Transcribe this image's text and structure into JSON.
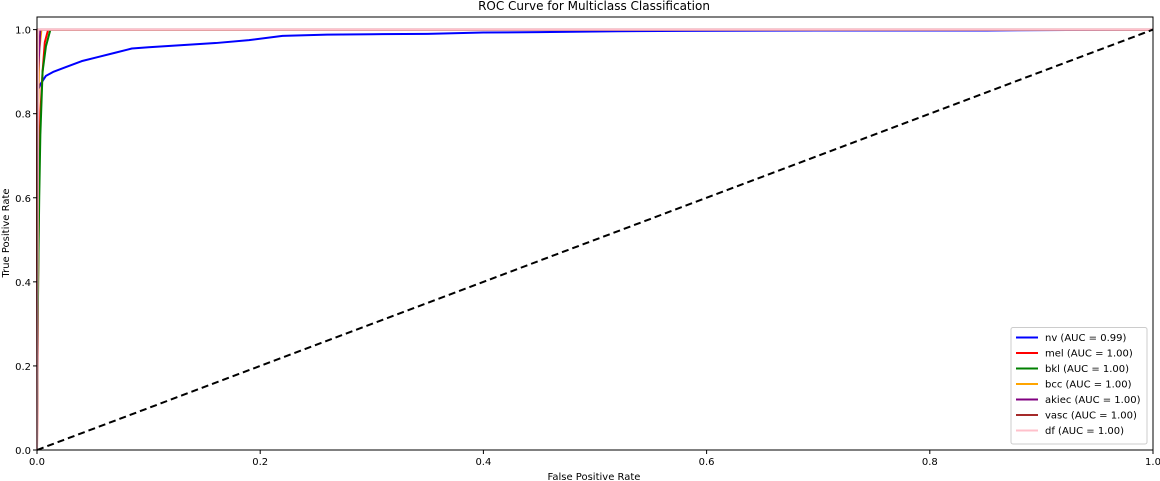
{
  "chart_data": {
    "type": "line",
    "title": "ROC Curve for Multiclass Classification",
    "xlabel": "False Positive Rate",
    "ylabel": "True Positive Rate",
    "xlim": [
      0,
      1
    ],
    "ylim": [
      0,
      1.03
    ],
    "xticks": [
      "0.0",
      "0.2",
      "0.4",
      "0.6",
      "0.8",
      "1.0"
    ],
    "yticks": [
      "0.0",
      "0.2",
      "0.4",
      "0.6",
      "0.8",
      "1.0"
    ],
    "grid": false,
    "legend_position": "lower-right",
    "diagonal": {
      "x": [
        0,
        1
      ],
      "y": [
        0,
        1
      ],
      "color": "#000000",
      "style": "dashed"
    },
    "series": [
      {
        "name": "nv (AUC = 0.99)",
        "color": "#0000ff",
        "x": [
          0,
          0,
          0.003,
          0.008,
          0.015,
          0.025,
          0.04,
          0.055,
          0.07,
          0.085,
          0.1,
          0.13,
          0.16,
          0.19,
          0.22,
          0.26,
          0.3,
          0.35,
          0.4,
          0.45,
          0.52,
          0.58,
          0.7,
          0.85,
          1.0
        ],
        "y": [
          0,
          0.85,
          0.87,
          0.89,
          0.9,
          0.91,
          0.925,
          0.935,
          0.945,
          0.955,
          0.958,
          0.963,
          0.968,
          0.975,
          0.985,
          0.988,
          0.989,
          0.99,
          0.993,
          0.994,
          0.996,
          0.997,
          0.998,
          0.998,
          1.0
        ]
      },
      {
        "name": "mel (AUC = 1.00)",
        "color": "#ff0000",
        "x": [
          0,
          0.001,
          0.002,
          0.003,
          0.005,
          0.007,
          0.01,
          1.0
        ],
        "y": [
          0,
          0.4,
          0.7,
          0.8,
          0.9,
          0.97,
          1.0,
          1.0
        ]
      },
      {
        "name": "bkl (AUC = 1.00)",
        "color": "#008000",
        "x": [
          0,
          0.001,
          0.002,
          0.003,
          0.005,
          0.008,
          0.012,
          1.0
        ],
        "y": [
          0.08,
          0.4,
          0.6,
          0.75,
          0.9,
          0.96,
          1.0,
          1.0
        ]
      },
      {
        "name": "bcc (AUC = 1.00)",
        "color": "#ffa500",
        "x": [
          0,
          0.001,
          0.002,
          0.004,
          1.0
        ],
        "y": [
          0,
          0.8,
          0.95,
          1.0,
          1.0
        ]
      },
      {
        "name": "akiec (AUC = 1.00)",
        "color": "#800080",
        "x": [
          0,
          0.001,
          0.003,
          1.0
        ],
        "y": [
          0,
          0.9,
          1.0,
          1.0
        ]
      },
      {
        "name": "vasc (AUC = 1.00)",
        "color": "#a52a2a",
        "x": [
          0,
          0,
          1.0
        ],
        "y": [
          0,
          1.0,
          1.0
        ]
      },
      {
        "name": "df (AUC = 1.00)",
        "color": "#ffc0cb",
        "x": [
          0,
          0.001,
          1.0
        ],
        "y": [
          0,
          1.0,
          1.0
        ]
      }
    ]
  }
}
